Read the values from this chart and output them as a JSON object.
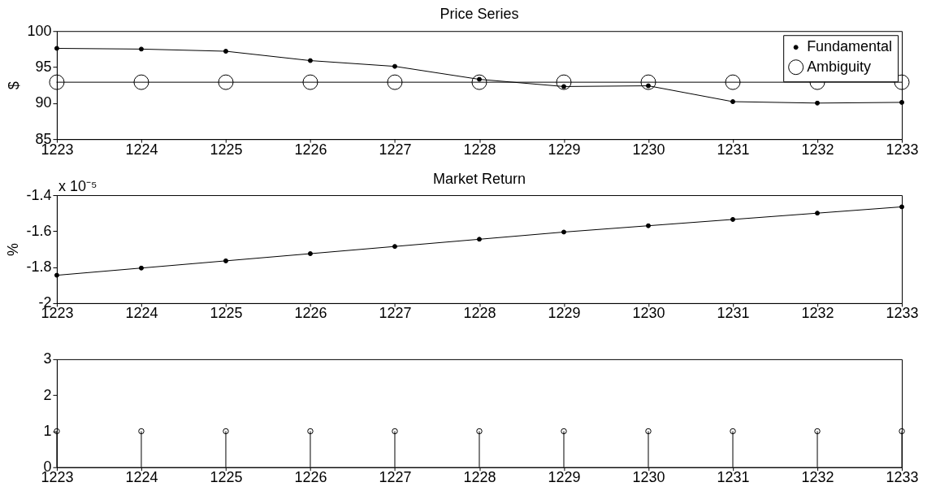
{
  "chart_data": [
    {
      "type": "line",
      "title": "Price Series",
      "ylabel": "$",
      "x": [
        1223,
        1224,
        1225,
        1226,
        1227,
        1228,
        1229,
        1230,
        1231,
        1232,
        1233
      ],
      "xlim": [
        1223,
        1233
      ],
      "xticks": [
        1223,
        1224,
        1225,
        1226,
        1227,
        1228,
        1229,
        1230,
        1231,
        1232,
        1233
      ],
      "ylim": [
        85,
        100
      ],
      "yticks": [
        85,
        90,
        95,
        100
      ],
      "legend": "top right",
      "series": [
        {
          "name": "Fundamental",
          "color": "#000000",
          "marker": "circle",
          "values": [
            97.6,
            97.5,
            97.2,
            95.9,
            95.1,
            93.3,
            92.3,
            92.4,
            90.2,
            90.0,
            90.1
          ]
        },
        {
          "name": "Ambiguity",
          "color": "#000000",
          "marker": "circle",
          "values": [
            92.9,
            92.9,
            92.9,
            92.9,
            92.9,
            92.9,
            92.9,
            92.9,
            92.9,
            92.9,
            92.9
          ]
        }
      ]
    },
    {
      "type": "line",
      "title": "Market Return",
      "ylabel": "%",
      "annotations": [
        "x 10⁻⁵"
      ],
      "x": [
        1223,
        1224,
        1225,
        1226,
        1227,
        1228,
        1229,
        1230,
        1231,
        1232,
        1233
      ],
      "xlim": [
        1223,
        1233
      ],
      "xticks": [
        1223,
        1224,
        1225,
        1226,
        1227,
        1228,
        1229,
        1230,
        1231,
        1232,
        1233
      ],
      "ylim": [
        -2,
        -1.4
      ],
      "yticks": [
        -2,
        -1.8,
        -1.6,
        -1.4
      ],
      "color": "#000000",
      "marker": "circle",
      "values": [
        -1.845,
        -1.805,
        -1.765,
        -1.725,
        -1.685,
        -1.645,
        -1.605,
        -1.57,
        -1.535,
        -1.5,
        -1.465
      ]
    },
    {
      "type": "lollipop",
      "x": [
        1223,
        1224,
        1225,
        1226,
        1227,
        1228,
        1229,
        1230,
        1231,
        1232,
        1233
      ],
      "xlim": [
        1223,
        1233
      ],
      "xticks": [
        1223,
        1224,
        1225,
        1226,
        1227,
        1228,
        1229,
        1230,
        1231,
        1232,
        1233
      ],
      "ylim": [
        0,
        3
      ],
      "yticks": [
        0,
        1,
        2,
        3
      ],
      "color": "#000000",
      "marker": "circle",
      "values": [
        1,
        1,
        1,
        1,
        1,
        1,
        1,
        1,
        1,
        1,
        1
      ]
    }
  ]
}
